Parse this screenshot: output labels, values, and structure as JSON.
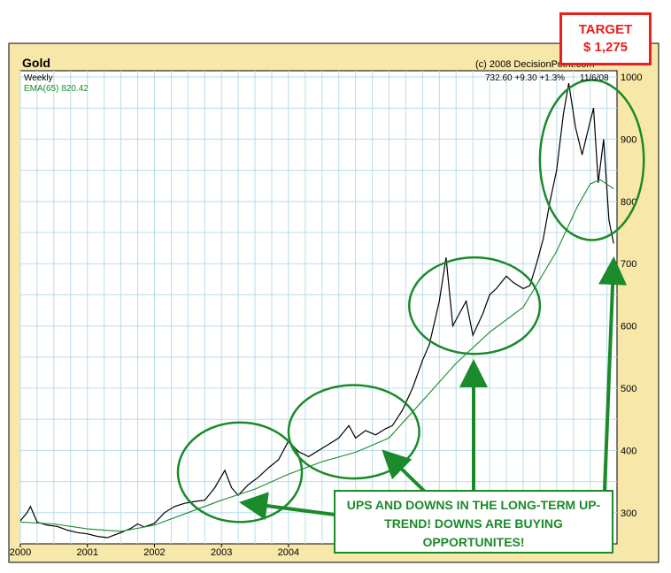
{
  "header": {
    "title": "Gold",
    "copyright": "(c) 2008 DecisionPoint.com",
    "quote": "732.60  +9.30  +1.3%",
    "date": "11/6/08",
    "frequency": "Weekly",
    "ema_label": "EMA(65) 820.42"
  },
  "callouts": {
    "target_line1": "TARGET",
    "target_line2": "$ 1,275",
    "note": "UPS AND DOWNS IN THE LONG-TERM UP-TREND! DOWNS ARE BUYING OPPORTUNITES!"
  },
  "colors": {
    "plot_background": "#ffffff",
    "frame": "#f7e7a8",
    "gridline": "#b8dcec",
    "price": "#000000",
    "ema": "#1a8a2a",
    "annotation": "#1a8a2a",
    "target": "#e8201a"
  },
  "chart_data": {
    "type": "line",
    "title": "Gold",
    "xlabel": "",
    "ylabel": "",
    "x_tick_labels": [
      "2000",
      "2001",
      "2002",
      "2003",
      "2004"
    ],
    "y_tick_labels": [
      "300",
      "400",
      "500",
      "600",
      "700",
      "800",
      "900",
      "1000"
    ],
    "xlim": [
      2000.0,
      2008.9
    ],
    "ylim": [
      250,
      1010
    ],
    "grid": true,
    "series": [
      {
        "name": "",
        "points": [
          [
            2000.0,
            287
          ],
          [
            2000.1,
            300
          ],
          [
            2000.15,
            310
          ],
          [
            2000.25,
            285
          ],
          [
            2000.4,
            280
          ],
          [
            2000.55,
            278
          ],
          [
            2000.7,
            272
          ],
          [
            2000.85,
            268
          ],
          [
            2001.0,
            266
          ],
          [
            2001.15,
            262
          ],
          [
            2001.3,
            260
          ],
          [
            2001.5,
            268
          ],
          [
            2001.65,
            275
          ],
          [
            2001.75,
            282
          ],
          [
            2001.85,
            277
          ],
          [
            2002.0,
            283
          ],
          [
            2002.15,
            300
          ],
          [
            2002.3,
            310
          ],
          [
            2002.45,
            315
          ],
          [
            2002.6,
            318
          ],
          [
            2002.75,
            320
          ],
          [
            2002.9,
            340
          ],
          [
            2003.05,
            368
          ],
          [
            2003.15,
            340
          ],
          [
            2003.25,
            328
          ],
          [
            2003.4,
            345
          ],
          [
            2003.55,
            357
          ],
          [
            2003.7,
            372
          ],
          [
            2003.85,
            385
          ],
          [
            2004.0,
            415
          ],
          [
            2004.15,
            398
          ],
          [
            2004.3,
            390
          ],
          [
            2004.45,
            400
          ],
          [
            2004.6,
            410
          ],
          [
            2004.75,
            420
          ],
          [
            2004.9,
            440
          ],
          [
            2005.0,
            420
          ],
          [
            2005.15,
            432
          ],
          [
            2005.3,
            425
          ],
          [
            2005.45,
            435
          ],
          [
            2005.55,
            440
          ],
          [
            2005.7,
            465
          ],
          [
            2005.85,
            500
          ],
          [
            2006.0,
            545
          ],
          [
            2006.1,
            570
          ],
          [
            2006.25,
            640
          ],
          [
            2006.35,
            710
          ],
          [
            2006.45,
            600
          ],
          [
            2006.55,
            620
          ],
          [
            2006.65,
            640
          ],
          [
            2006.75,
            585
          ],
          [
            2006.9,
            620
          ],
          [
            2007.0,
            650
          ],
          [
            2007.1,
            660
          ],
          [
            2007.25,
            680
          ],
          [
            2007.35,
            670
          ],
          [
            2007.5,
            660
          ],
          [
            2007.6,
            665
          ],
          [
            2007.7,
            700
          ],
          [
            2007.8,
            740
          ],
          [
            2007.9,
            800
          ],
          [
            2008.0,
            850
          ],
          [
            2008.1,
            940
          ],
          [
            2008.18,
            990
          ],
          [
            2008.28,
            920
          ],
          [
            2008.38,
            875
          ],
          [
            2008.48,
            920
          ],
          [
            2008.55,
            950
          ],
          [
            2008.62,
            830
          ],
          [
            2008.7,
            900
          ],
          [
            2008.78,
            770
          ],
          [
            2008.85,
            732.6
          ]
        ]
      },
      {
        "name": "EMA(65) 820.42",
        "points": [
          [
            2000.0,
            285
          ],
          [
            2000.5,
            282
          ],
          [
            2001.0,
            274
          ],
          [
            2001.5,
            270
          ],
          [
            2002.0,
            280
          ],
          [
            2002.5,
            300
          ],
          [
            2003.0,
            320
          ],
          [
            2003.5,
            338
          ],
          [
            2004.0,
            362
          ],
          [
            2004.5,
            382
          ],
          [
            2005.0,
            397
          ],
          [
            2005.5,
            420
          ],
          [
            2006.0,
            480
          ],
          [
            2006.5,
            540
          ],
          [
            2007.0,
            590
          ],
          [
            2007.5,
            630
          ],
          [
            2008.0,
            720
          ],
          [
            2008.3,
            790
          ],
          [
            2008.5,
            828
          ],
          [
            2008.65,
            835
          ],
          [
            2008.85,
            820.42
          ]
        ]
      }
    ],
    "annotations": [
      {
        "type": "ellipse",
        "x_range": [
          2002.35,
          2004.2
        ],
        "y_range": [
          285,
          445
        ]
      },
      {
        "type": "ellipse",
        "x_range": [
          2004.0,
          2005.95
        ],
        "y_range": [
          355,
          505
        ]
      },
      {
        "type": "ellipse",
        "x_range": [
          2005.8,
          2007.75
        ],
        "y_range": [
          555,
          710
        ]
      },
      {
        "type": "ellipse",
        "x_range": [
          2007.75,
          2009.3
        ],
        "y_range": [
          738,
          995
        ]
      }
    ]
  }
}
